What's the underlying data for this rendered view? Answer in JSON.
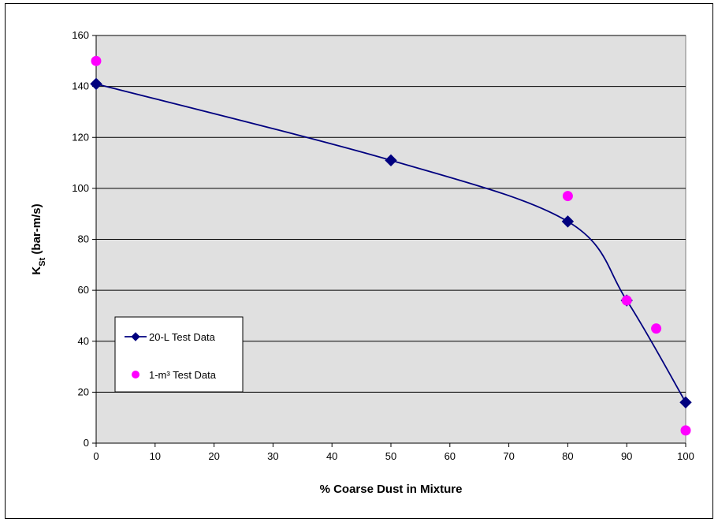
{
  "chart_data": {
    "type": "scatter",
    "title": "",
    "xlabel": "% Coarse Dust in Mixture",
    "ylabel_main": "K",
    "ylabel_sub": "St",
    "ylabel_rest": " (bar-m/s)",
    "xlim": [
      0,
      100
    ],
    "ylim": [
      0,
      160
    ],
    "x_ticks": [
      0,
      10,
      20,
      30,
      40,
      50,
      60,
      70,
      80,
      90,
      100
    ],
    "y_ticks": [
      0,
      20,
      40,
      60,
      80,
      100,
      120,
      140,
      160
    ],
    "grid": "horizontal",
    "plot_background": "#e0e0e0",
    "legend_position": "left-center",
    "series": [
      {
        "name": "20-L Test Data",
        "style": "line-smooth",
        "marker": "diamond",
        "color": "#00007f",
        "x": [
          0,
          50,
          80,
          90,
          100
        ],
        "y": [
          141,
          111,
          87,
          56,
          16
        ]
      },
      {
        "name": "1-m³ Test Data",
        "style": "markers",
        "marker": "circle",
        "color": "#ff00ff",
        "x": [
          0,
          80,
          90,
          95,
          100
        ],
        "y": [
          150,
          97,
          56,
          45,
          5
        ]
      }
    ]
  }
}
